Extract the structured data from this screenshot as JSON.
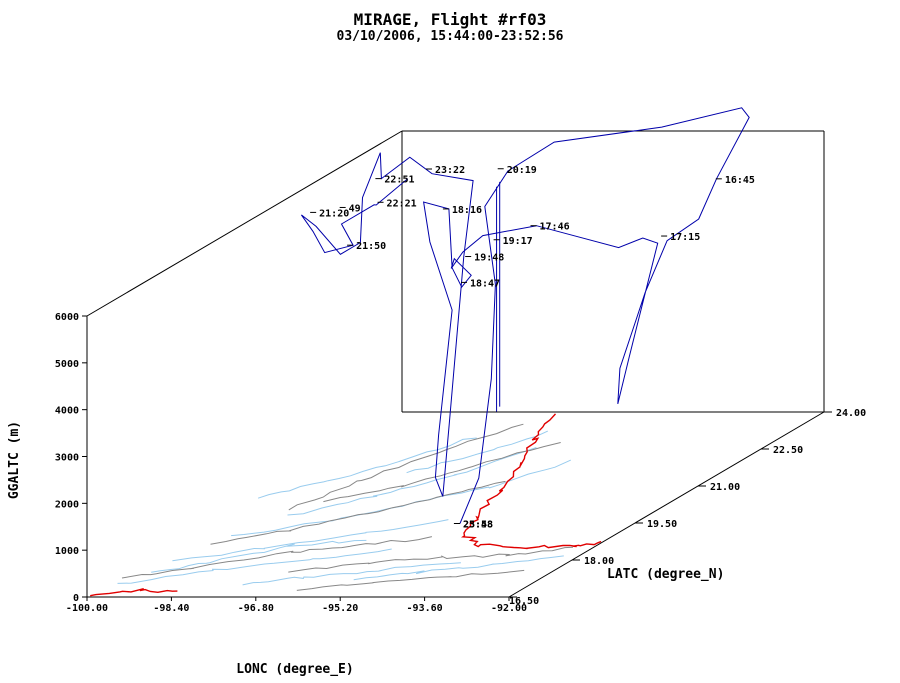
{
  "chart_data": {
    "type": "line",
    "title": "MIRAGE, Flight #rf03",
    "subtitle": "03/10/2006, 15:44:00-23:52:56",
    "xlabel": "LONC (degree_E)",
    "ylabel": "LATC (degree_N)",
    "zlabel": "GGALTC (m)",
    "xlim": [
      -100.0,
      -92.0
    ],
    "ylim": [
      16.5,
      24.0
    ],
    "zlim": [
      0,
      6000
    ],
    "x_ticks": [
      "-100.00",
      "-98.40",
      "-96.80",
      "-95.20",
      "-93.60",
      "-92.00"
    ],
    "y_ticks": [
      "16.50",
      "18.00",
      "19.50",
      "21.00",
      "22.50",
      "24.00"
    ],
    "z_ticks": [
      "0",
      "1000",
      "2000",
      "3000",
      "4000",
      "5000",
      "6000"
    ],
    "colors": {
      "track": "#0000aa",
      "coastline": "#e00000",
      "rivers": "#99ccee",
      "borders": "#888888",
      "box": "#000000"
    },
    "time_labels": [
      {
        "text": "16:45",
        "lon": -93.3,
        "lat": 23.2,
        "alt": 5400
      },
      {
        "text": "17:15",
        "lon": -93.7,
        "lat": 22.4,
        "alt": 4600
      },
      {
        "text": "17:46",
        "lon": -95.3,
        "lat": 21.3,
        "alt": 5400
      },
      {
        "text": "18:16",
        "lon": -97.2,
        "lat": 21.6,
        "alt": 5600
      },
      {
        "text": "18:47",
        "lon": -96.3,
        "lat": 20.9,
        "alt": 4400
      },
      {
        "text": "19:17",
        "lon": -96.0,
        "lat": 21.3,
        "alt": 5100
      },
      {
        "text": "19:48",
        "lon": -96.3,
        "lat": 21.0,
        "alt": 4900
      },
      {
        "text": "20:19",
        "lon": -96.4,
        "lat": 21.9,
        "alt": 6300
      },
      {
        "text": "21:50",
        "lon": -98.3,
        "lat": 20.7,
        "alt": 5300
      },
      {
        "text": "22:21",
        "lon": -98.2,
        "lat": 21.3,
        "alt": 5900
      },
      {
        "text": "22:51",
        "lon": -98.4,
        "lat": 21.5,
        "alt": 6300
      },
      {
        "text": "23:22",
        "lon": -97.6,
        "lat": 21.7,
        "alt": 6400
      },
      {
        "text": "23:58",
        "lon": -95.0,
        "lat": 19.1,
        "alt": 200
      },
      {
        "text": "25:48",
        "lon": -95.0,
        "lat": 19.1,
        "alt": 200
      },
      {
        "text": "49",
        "lon": -98.6,
        "lat": 20.9,
        "alt": 6000
      },
      {
        "text": "21:20",
        "lon": -99.0,
        "lat": 20.7,
        "alt": 6000
      }
    ]
  }
}
